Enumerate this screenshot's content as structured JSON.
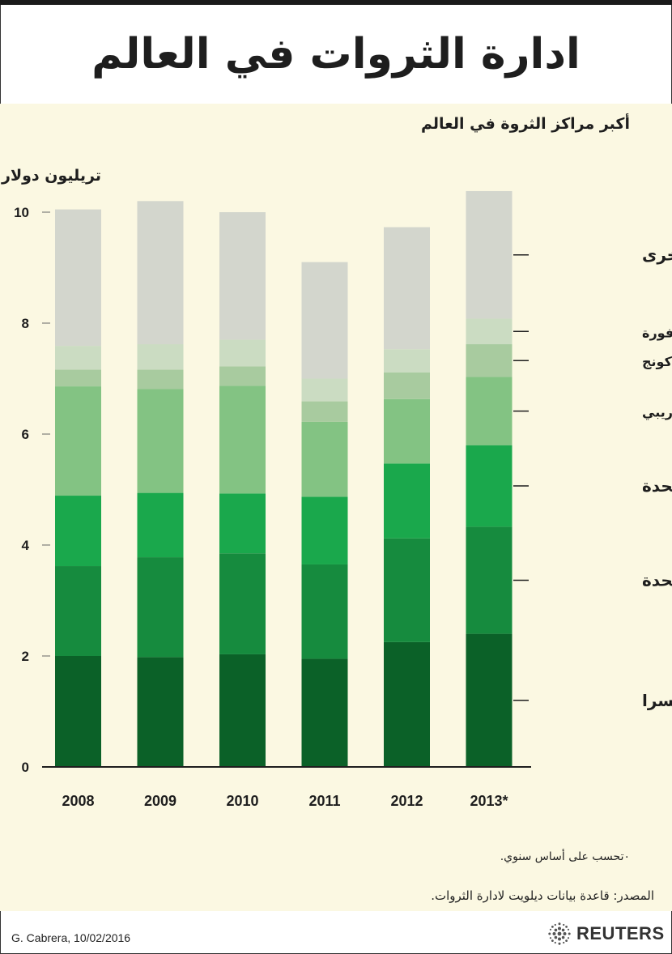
{
  "header": {
    "title": "ادارة الثروات في العالم"
  },
  "footer": {
    "note": "٠تحسب على أساس سنوي.",
    "source": "المصدر: قاعدة بيانات ديلويت لادارة الثروات.",
    "credit": "G. Cabrera,  10/02/2016",
    "brand": "REUTERS"
  },
  "chart_data": {
    "type": "bar",
    "stacked": true,
    "title": "أكبر مراكز الثروة في العالم",
    "ylabel": "تريليون دولار",
    "xlabel": "",
    "ylim": [
      0,
      10
    ],
    "yticks": [
      0,
      2,
      4,
      6,
      8,
      10
    ],
    "categories": [
      "2008",
      "2009",
      "2010",
      "2011",
      "2012",
      "2013*"
    ],
    "series": [
      {
        "name": "سويسرا",
        "color": "#0b6128",
        "values": [
          2.0,
          1.98,
          2.03,
          1.95,
          2.25,
          2.4
        ]
      },
      {
        "name": "المملكة المتحدة",
        "color": "#168b3e",
        "values": [
          1.62,
          1.8,
          1.82,
          1.7,
          1.87,
          1.93
        ]
      },
      {
        "name": "الولايات المتحدة",
        "color": "#1aa84c",
        "values": [
          1.27,
          1.16,
          1.08,
          1.22,
          1.35,
          1.47
        ]
      },
      {
        "name": "بنما والكاريبي",
        "color": "#83c383",
        "values": [
          1.97,
          1.87,
          1.94,
          1.35,
          1.16,
          1.23
        ]
      },
      {
        "name": "هونج كونج",
        "color": "#a8cb9f",
        "values": [
          0.3,
          0.35,
          0.35,
          0.37,
          0.48,
          0.59
        ]
      },
      {
        "name": "سنغافورة",
        "color": "#cbdcc2",
        "values": [
          0.43,
          0.46,
          0.48,
          0.41,
          0.42,
          0.46
        ]
      },
      {
        "name": "أخرى",
        "color": "#d3d6cd",
        "values": [
          2.46,
          2.58,
          2.3,
          2.1,
          2.2,
          2.3
        ]
      }
    ]
  }
}
